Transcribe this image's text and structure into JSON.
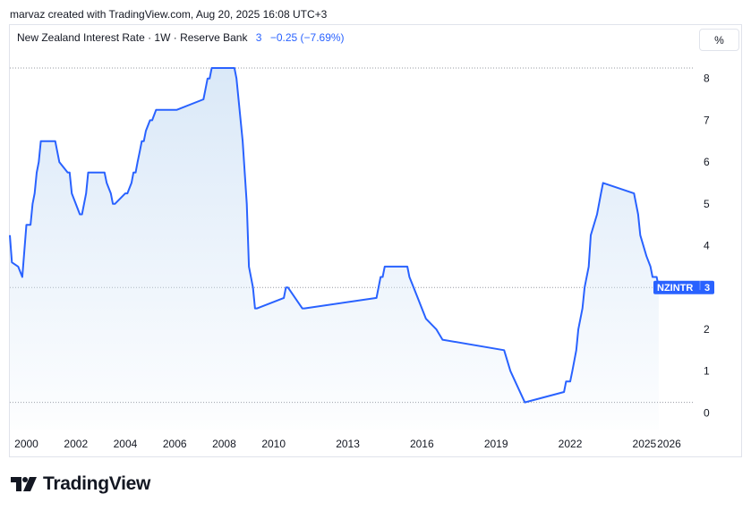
{
  "header": {
    "author_line": "marvaz created with TradingView.com, Aug 20, 2025 16:08 UTC+3"
  },
  "legend": {
    "symbol": "New Zealand Interest Rate · 1W · Reserve Bank",
    "value": "3",
    "change": "−0.25 (−7.69%)"
  },
  "toolbar": {
    "unit_label": "%"
  },
  "price_tag": {
    "ticker": "NZINTR",
    "value": "3"
  },
  "brand": {
    "name": "TradingView"
  },
  "colors": {
    "line": "#2962ff",
    "fill": "#d6e6f7",
    "tag": "#2962ff",
    "grid_dots": "#9598a1"
  },
  "chart_data": {
    "type": "line",
    "title": "New Zealand Interest Rate · 1W · Reserve Bank",
    "xlabel": "",
    "ylabel": "",
    "x_ticks": [
      "2000",
      "2002",
      "2004",
      "2006",
      "2008",
      "2010",
      "2013",
      "2016",
      "2019",
      "2022",
      "2025",
      "2026"
    ],
    "y_ticks": [
      0,
      1,
      2,
      3,
      4,
      5,
      6,
      7,
      8
    ],
    "ylim": [
      -0.4,
      8.55
    ],
    "xlim": [
      "1999-05-01",
      "2026-12-31"
    ],
    "grid": false,
    "dotted_levels": [
      8.25,
      3.0,
      0.25
    ],
    "series": [
      {
        "name": "NZINTR",
        "x": [
          "1999-05-01",
          "1999-06-01",
          "1999-09-01",
          "1999-11-01",
          "2000-01-01",
          "2000-03-01",
          "2000-04-01",
          "2000-05-01",
          "2000-06-01",
          "2000-07-01",
          "2000-08-01",
          "2001-03-01",
          "2001-04-01",
          "2001-05-01",
          "2001-09-01",
          "2001-10-01",
          "2001-11-01",
          "2002-03-01",
          "2002-04-01",
          "2002-05-01",
          "2002-06-01",
          "2002-07-01",
          "2003-03-01",
          "2003-04-01",
          "2003-06-01",
          "2003-07-01",
          "2003-08-01",
          "2004-01-01",
          "2004-02-01",
          "2004-04-01",
          "2004-05-01",
          "2004-06-01",
          "2004-07-01",
          "2004-08-01",
          "2004-09-01",
          "2004-10-01",
          "2004-11-01",
          "2005-01-01",
          "2005-02-01",
          "2005-04-01",
          "2006-01-01",
          "2006-02-01",
          "2007-03-01",
          "2007-04-01",
          "2007-05-01",
          "2007-06-01",
          "2007-07-01",
          "2008-06-01",
          "2008-07-01",
          "2008-08-01",
          "2008-10-01",
          "2008-12-01",
          "2009-01-01",
          "2009-03-01",
          "2009-04-01",
          "2009-05-01",
          "2010-06-01",
          "2010-07-01",
          "2010-08-01",
          "2011-03-01",
          "2011-04-01",
          "2014-03-01",
          "2014-04-01",
          "2014-05-01",
          "2014-06-01",
          "2014-07-01",
          "2015-06-01",
          "2015-07-01",
          "2015-09-01",
          "2015-11-01",
          "2016-01-01",
          "2016-03-01",
          "2016-08-01",
          "2016-11-01",
          "2019-05-01",
          "2019-08-01",
          "2020-03-01",
          "2021-10-01",
          "2021-11-01",
          "2022-01-01",
          "2022-02-01",
          "2022-04-01",
          "2022-05-01",
          "2022-07-01",
          "2022-08-01",
          "2022-10-01",
          "2022-11-01",
          "2023-02-01",
          "2023-04-01",
          "2023-05-01",
          "2024-08-01",
          "2024-10-01",
          "2024-11-01",
          "2025-02-01",
          "2025-04-01",
          "2025-05-01",
          "2025-07-01",
          "2025-08-01"
        ],
        "values": [
          4.25,
          3.6,
          3.5,
          3.25,
          4.5,
          4.5,
          5.0,
          5.25,
          5.75,
          6.0,
          6.5,
          6.5,
          6.25,
          6.0,
          5.75,
          5.75,
          5.25,
          4.75,
          4.75,
          5.0,
          5.25,
          5.75,
          5.75,
          5.5,
          5.25,
          5.0,
          5.0,
          5.25,
          5.25,
          5.5,
          5.75,
          5.75,
          6.0,
          6.25,
          6.5,
          6.5,
          6.75,
          7.0,
          7.0,
          7.25,
          7.25,
          7.25,
          7.5,
          7.75,
          8.0,
          8.0,
          8.25,
          8.25,
          8.0,
          7.5,
          6.5,
          5.0,
          3.5,
          3.0,
          2.5,
          2.5,
          2.75,
          3.0,
          3.0,
          2.5,
          2.5,
          2.75,
          3.0,
          3.25,
          3.25,
          3.5,
          3.5,
          3.25,
          3.0,
          2.75,
          2.5,
          2.25,
          2.0,
          1.75,
          1.5,
          1.0,
          0.25,
          0.5,
          0.75,
          0.75,
          1.0,
          1.5,
          2.0,
          2.5,
          3.0,
          3.5,
          4.25,
          4.75,
          5.25,
          5.5,
          5.25,
          4.75,
          4.25,
          3.75,
          3.5,
          3.25,
          3.25,
          3.0
        ]
      }
    ]
  }
}
